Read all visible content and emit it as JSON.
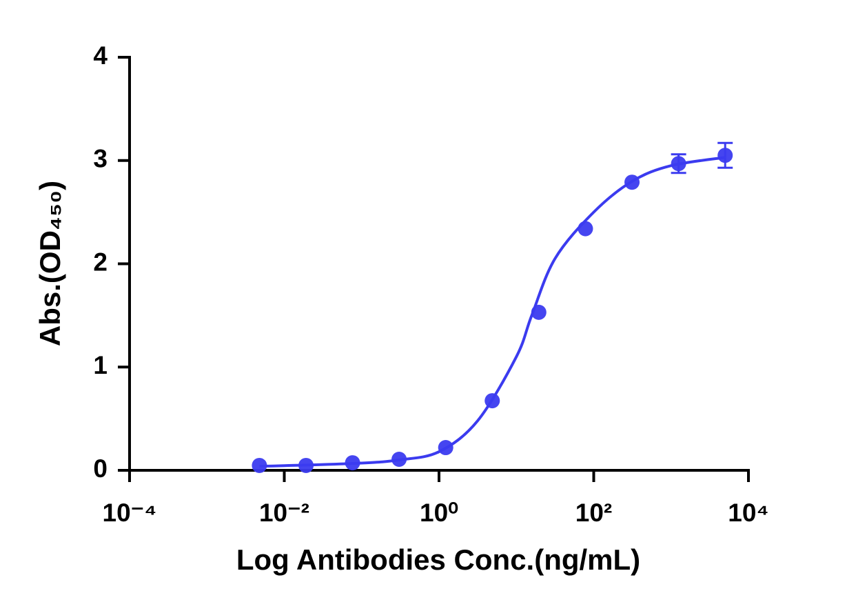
{
  "chart_data": {
    "type": "scatter",
    "x_label": "Log Antibodies Conc.(ng/mL)",
    "y_label": "Abs.(OD₄₅₀)",
    "xscale": "log",
    "xlim": [
      0.0001,
      10000
    ],
    "ylim": [
      0,
      4
    ],
    "xticks": [
      {
        "value": 0.0001,
        "label": "10⁻⁴"
      },
      {
        "value": 0.01,
        "label": "10⁻²"
      },
      {
        "value": 1,
        "label": "10⁰"
      },
      {
        "value": 100,
        "label": "10²"
      },
      {
        "value": 10000,
        "label": "10⁴"
      }
    ],
    "yticks": [
      0,
      1,
      2,
      3,
      4
    ],
    "color": "#3b3bef",
    "x": [
      0.00477,
      0.0191,
      0.0763,
      0.305,
      1.22,
      4.88,
      19.5,
      78.1,
      312.5,
      1250,
      5000
    ],
    "values": [
      0.047,
      0.047,
      0.073,
      0.107,
      0.22,
      0.674,
      1.53,
      2.34,
      2.79,
      2.97,
      3.05
    ],
    "errors": [
      0,
      0,
      0,
      0,
      0,
      0,
      0,
      0,
      0,
      0.09,
      0.12
    ],
    "fit": {
      "x": [
        0.00477,
        0.01,
        0.1,
        0.3,
        1,
        3.16,
        10,
        15.8,
        31.6,
        100,
        316,
        1000,
        5000
      ],
      "values": [
        0.04,
        0.045,
        0.07,
        0.1,
        0.18,
        0.48,
        1.1,
        1.5,
        2.05,
        2.5,
        2.8,
        2.95,
        3.03
      ]
    }
  }
}
